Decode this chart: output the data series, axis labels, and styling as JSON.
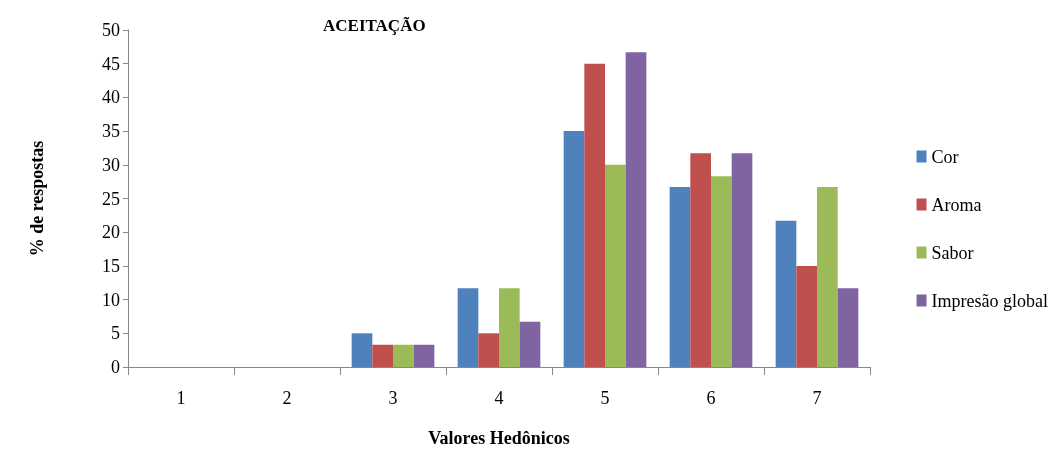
{
  "chart_data": {
    "type": "bar",
    "title": "ACEITAÇÃO",
    "xlabel": "Valores Hedônicos",
    "ylabel": "% de respostas",
    "categories": [
      "1",
      "2",
      "3",
      "4",
      "5",
      "6",
      "7"
    ],
    "series": [
      {
        "name": "Cor",
        "color": "#4f81bd",
        "values": [
          0,
          0,
          5,
          11.7,
          35,
          26.7,
          21.7
        ]
      },
      {
        "name": "Aroma",
        "color": "#c0504d",
        "values": [
          0,
          0,
          3.3,
          5,
          45,
          31.7,
          15
        ]
      },
      {
        "name": "Sabor",
        "color": "#9bbb59",
        "values": [
          0,
          0,
          3.3,
          11.7,
          30,
          28.3,
          26.7
        ]
      },
      {
        "name": "Impresão global",
        "color": "#8064a2",
        "values": [
          0,
          0,
          3.3,
          6.7,
          46.7,
          31.7,
          11.7
        ]
      }
    ],
    "ylim": [
      0,
      50
    ],
    "yticks": [
      0,
      5,
      10,
      15,
      20,
      25,
      30,
      35,
      40,
      45,
      50
    ],
    "grid": false,
    "legend": "right"
  }
}
